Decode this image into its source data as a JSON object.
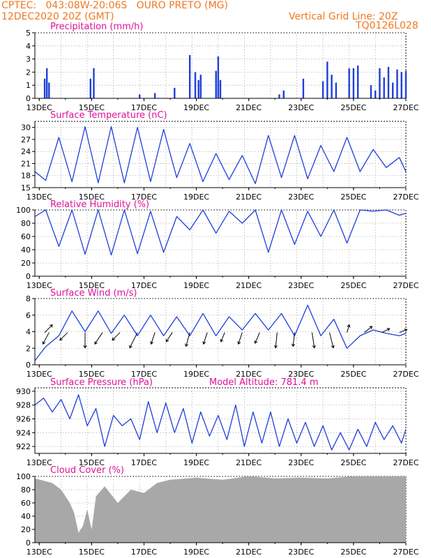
{
  "header": {
    "line1_left": "CPTEC:   043:08W-20:06S   OURO PRETO (MG)",
    "line2_left": "12DEC2020 20Z (GMT)",
    "line2_right": "Vertical Grid Line: 20Z",
    "line3_right": "TQ0126L028",
    "model_altitude": "Model Altitude: 781.4 m"
  },
  "colors": {
    "header": "#f07820",
    "panel_title": "#e0109a",
    "series": "#1f3fd8",
    "cloud": "#a8a8a8",
    "wind_arrow": "#000000"
  },
  "time_axis": {
    "start": "12DEC2020 20Z",
    "end": "27DEC2020 00Z",
    "tick_labels": [
      "13DEC",
      "15DEC",
      "17DEC",
      "19DEC",
      "21DEC",
      "23DEC",
      "25DEC",
      "27DEC"
    ],
    "vertical_grid_line": "20Z"
  },
  "chart_data": [
    {
      "type": "bar",
      "title": "Precipitation (mm/h)",
      "ylim": [
        0,
        5
      ],
      "yticks": [
        "0",
        "1",
        "2",
        "3",
        "4",
        "5"
      ],
      "x": [
        "13DEC 05Z",
        "13DEC 07Z",
        "13DEC 09Z",
        "14DEC 23Z",
        "15DEC 02Z",
        "16DEC 20Z",
        "17DEC 10Z",
        "18DEC 04Z",
        "18DEC 18Z",
        "18DEC 23Z",
        "19DEC 02Z",
        "19DEC 04Z",
        "19DEC 18Z",
        "19DEC 20Z",
        "19DEC 22Z",
        "22DEC 04Z",
        "22DEC 08Z",
        "23DEC 02Z",
        "23DEC 20Z",
        "24DEC 00Z",
        "24DEC 04Z",
        "24DEC 08Z",
        "24DEC 20Z",
        "25DEC 00Z",
        "25DEC 04Z",
        "25DEC 16Z",
        "25DEC 20Z",
        "26DEC 00Z",
        "26DEC 04Z",
        "26DEC 08Z",
        "26DEC 12Z",
        "26DEC 16Z",
        "26DEC 20Z",
        "27DEC 00Z"
      ],
      "values": [
        1.5,
        2.3,
        1.2,
        1.5,
        2.3,
        0.3,
        0.4,
        0.8,
        3.3,
        2.0,
        1.4,
        1.8,
        2.1,
        3.2,
        1.4,
        0.3,
        0.6,
        1.5,
        1.3,
        2.8,
        1.8,
        1.2,
        2.3,
        2.3,
        2.5,
        1.0,
        0.6,
        2.3,
        1.6,
        2.4,
        1.2,
        2.2,
        2.0,
        2.1
      ],
      "grid": true
    },
    {
      "type": "line",
      "title": "Surface Temperature (nC)",
      "ylim": [
        15,
        31.5
      ],
      "yticks": [
        "15",
        "18",
        "21",
        "24",
        "27",
        "30"
      ],
      "x": [
        "12DEC 20Z",
        "13DEC 06Z",
        "13DEC 18Z",
        "14DEC 06Z",
        "14DEC 18Z",
        "15DEC 06Z",
        "15DEC 18Z",
        "16DEC 06Z",
        "16DEC 18Z",
        "17DEC 06Z",
        "17DEC 18Z",
        "18DEC 06Z",
        "18DEC 18Z",
        "19DEC 06Z",
        "19DEC 18Z",
        "20DEC 06Z",
        "20DEC 18Z",
        "21DEC 06Z",
        "21DEC 18Z",
        "22DEC 06Z",
        "22DEC 18Z",
        "23DEC 06Z",
        "23DEC 18Z",
        "24DEC 06Z",
        "24DEC 18Z",
        "25DEC 06Z",
        "25DEC 18Z",
        "26DEC 06Z",
        "26DEC 18Z",
        "27DEC 00Z"
      ],
      "values": [
        19,
        16.8,
        27.5,
        16.5,
        30.2,
        16.2,
        30.2,
        16.2,
        30,
        16.5,
        29.5,
        17.5,
        26,
        16.5,
        23.5,
        17,
        23,
        16,
        28,
        17.5,
        28,
        17.2,
        25.5,
        19,
        27.5,
        19,
        24.5,
        20,
        22.5,
        19
      ],
      "grid": true
    },
    {
      "type": "line",
      "title": "Relative Humidity (%)",
      "ylim": [
        0,
        100
      ],
      "yticks": [
        "0",
        "20",
        "40",
        "60",
        "80",
        "100"
      ],
      "x": [
        "12DEC 20Z",
        "13DEC 06Z",
        "13DEC 18Z",
        "14DEC 06Z",
        "14DEC 18Z",
        "15DEC 06Z",
        "15DEC 18Z",
        "16DEC 06Z",
        "16DEC 18Z",
        "17DEC 06Z",
        "17DEC 18Z",
        "18DEC 06Z",
        "18DEC 18Z",
        "19DEC 06Z",
        "19DEC 18Z",
        "20DEC 06Z",
        "20DEC 18Z",
        "21DEC 06Z",
        "21DEC 18Z",
        "22DEC 06Z",
        "22DEC 18Z",
        "23DEC 06Z",
        "23DEC 18Z",
        "24DEC 06Z",
        "24DEC 18Z",
        "25DEC 06Z",
        "25DEC 18Z",
        "26DEC 06Z",
        "26DEC 18Z",
        "27DEC 00Z"
      ],
      "values": [
        90,
        100,
        45,
        100,
        33,
        100,
        32,
        100,
        34,
        98,
        36,
        90,
        70,
        100,
        65,
        98,
        80,
        100,
        36,
        100,
        48,
        98,
        60,
        100,
        50,
        100,
        98,
        100,
        92,
        95
      ],
      "grid": true
    },
    {
      "type": "line",
      "title": "Surface Wind (m/s)",
      "ylim": [
        0,
        8
      ],
      "yticks": [
        "0",
        "2",
        "4",
        "6",
        "8"
      ],
      "x": [
        "12DEC 20Z",
        "13DEC 06Z",
        "13DEC 18Z",
        "14DEC 06Z",
        "14DEC 18Z",
        "15DEC 06Z",
        "15DEC 18Z",
        "16DEC 06Z",
        "16DEC 18Z",
        "17DEC 06Z",
        "17DEC 18Z",
        "18DEC 06Z",
        "18DEC 18Z",
        "19DEC 06Z",
        "19DEC 18Z",
        "20DEC 06Z",
        "20DEC 18Z",
        "21DEC 06Z",
        "21DEC 18Z",
        "22DEC 06Z",
        "22DEC 18Z",
        "23DEC 06Z",
        "23DEC 18Z",
        "24DEC 06Z",
        "24DEC 18Z",
        "25DEC 06Z",
        "25DEC 18Z",
        "26DEC 06Z",
        "26DEC 18Z",
        "27DEC 00Z"
      ],
      "values": [
        0.5,
        2.2,
        3.5,
        6.5,
        4,
        6.5,
        3.8,
        6.0,
        3.5,
        6.0,
        3.5,
        5.8,
        3.5,
        6.2,
        3.5,
        5.8,
        4.2,
        6.2,
        4.2,
        6.2,
        3.5,
        7.2,
        3.5,
        5.5,
        2.0,
        3.5,
        4.2,
        3.8,
        3.5,
        3.8
      ],
      "grid": true,
      "vectors": [
        {
          "x": "13DEC 05Z",
          "u": 1,
          "v": 1
        },
        {
          "x": "13DEC 09Z",
          "u": -0.8,
          "v": -1.5
        },
        {
          "x": "14DEC 02Z",
          "u": -1,
          "v": -1
        },
        {
          "x": "14DEC 18Z",
          "u": 0,
          "v": -2
        },
        {
          "x": "15DEC 10Z",
          "u": -1,
          "v": -1.5
        },
        {
          "x": "16DEC 02Z",
          "u": -1,
          "v": -1
        },
        {
          "x": "16DEC 18Z",
          "u": -1,
          "v": -2
        },
        {
          "x": "17DEC 10Z",
          "u": -0.5,
          "v": -1.5
        },
        {
          "x": "18DEC 02Z",
          "u": -0.8,
          "v": -1.2
        },
        {
          "x": "18DEC 18Z",
          "u": -0.5,
          "v": -1.8
        },
        {
          "x": "19DEC 10Z",
          "u": -0.5,
          "v": -1.5
        },
        {
          "x": "20DEC 02Z",
          "u": -0.5,
          "v": -1.2
        },
        {
          "x": "20DEC 18Z",
          "u": -0.5,
          "v": -1.5
        },
        {
          "x": "21DEC 10Z",
          "u": -0.6,
          "v": -1.4
        },
        {
          "x": "22DEC 02Z",
          "u": -0.2,
          "v": -2
        },
        {
          "x": "22DEC 18Z",
          "u": -0.2,
          "v": -1.8
        },
        {
          "x": "23DEC 10Z",
          "u": 0.3,
          "v": -2
        },
        {
          "x": "24DEC 02Z",
          "u": 0.5,
          "v": -2
        },
        {
          "x": "24DEC 18Z",
          "u": 0.3,
          "v": 1
        },
        {
          "x": "25DEC 10Z",
          "u": 1,
          "v": 0.8
        },
        {
          "x": "26DEC 02Z",
          "u": 1,
          "v": 0.5
        },
        {
          "x": "26DEC 18Z",
          "u": 1,
          "v": 0.4
        }
      ]
    },
    {
      "type": "line",
      "title": "Surface Pressure (hPa)",
      "ylim": [
        921,
        930.5
      ],
      "yticks": [
        "922",
        "924",
        "926",
        "928",
        "930"
      ],
      "x": [
        "12DEC 20Z",
        "13DEC 04Z",
        "13DEC 12Z",
        "13DEC 20Z",
        "14DEC 04Z",
        "14DEC 12Z",
        "14DEC 20Z",
        "15DEC 04Z",
        "15DEC 12Z",
        "15DEC 20Z",
        "16DEC 04Z",
        "16DEC 12Z",
        "16DEC 20Z",
        "17DEC 04Z",
        "17DEC 12Z",
        "17DEC 20Z",
        "18DEC 04Z",
        "18DEC 12Z",
        "18DEC 20Z",
        "19DEC 04Z",
        "19DEC 12Z",
        "19DEC 20Z",
        "20DEC 04Z",
        "20DEC 12Z",
        "20DEC 20Z",
        "21DEC 04Z",
        "21DEC 12Z",
        "21DEC 20Z",
        "22DEC 04Z",
        "22DEC 12Z",
        "22DEC 20Z",
        "23DEC 04Z",
        "23DEC 12Z",
        "23DEC 20Z",
        "24DEC 04Z",
        "24DEC 12Z",
        "24DEC 20Z",
        "25DEC 04Z",
        "25DEC 12Z",
        "25DEC 20Z",
        "26DEC 04Z",
        "26DEC 12Z",
        "26DEC 20Z",
        "27DEC 00Z"
      ],
      "values": [
        928,
        929,
        927,
        928.8,
        926,
        929.5,
        925,
        927.5,
        922,
        926.5,
        925,
        926,
        923,
        928.5,
        924,
        928.3,
        924,
        927.5,
        922.5,
        927,
        923.5,
        926.5,
        923,
        928,
        922,
        927,
        922.5,
        927,
        922,
        926,
        922.5,
        925.5,
        922,
        925,
        921.5,
        924,
        921.5,
        924.5,
        922,
        925.5,
        923,
        925,
        922.5,
        924.5
      ],
      "grid": true
    },
    {
      "type": "area",
      "title": "Cloud Cover (%)",
      "ylim": [
        0,
        100
      ],
      "yticks": [
        "0",
        "20",
        "40",
        "60",
        "80",
        "100"
      ],
      "x": [
        "12DEC 20Z",
        "13DEC 12Z",
        "13DEC 20Z",
        "14DEC 04Z",
        "14DEC 08Z",
        "14DEC 12Z",
        "14DEC 16Z",
        "14DEC 20Z",
        "15DEC 00Z",
        "15DEC 04Z",
        "15DEC 12Z",
        "16DEC 00Z",
        "16DEC 12Z",
        "17DEC 00Z",
        "17DEC 12Z",
        "18DEC 00Z",
        "19DEC 00Z",
        "20DEC 00Z",
        "21DEC 00Z",
        "22DEC 00Z",
        "23DEC 00Z",
        "24DEC 00Z",
        "25DEC 00Z",
        "26DEC 00Z",
        "27DEC 00Z"
      ],
      "values": [
        97,
        90,
        80,
        60,
        45,
        15,
        25,
        50,
        20,
        70,
        85,
        60,
        80,
        75,
        90,
        95,
        98,
        95,
        100,
        97,
        98,
        97,
        100,
        100,
        100
      ],
      "grid": true
    }
  ]
}
